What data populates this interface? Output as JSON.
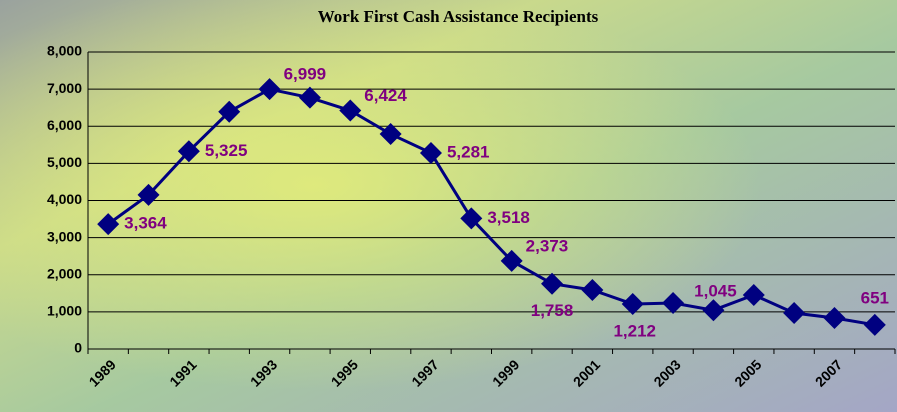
{
  "chart_data": {
    "type": "line",
    "title": "Work First Cash Assistance Recipients",
    "categories": [
      "1989",
      null,
      "1991",
      null,
      "1993",
      null,
      "1995",
      null,
      "1997",
      null,
      "1999",
      null,
      "2001",
      null,
      "2003",
      null,
      "2005",
      null,
      "2007",
      null
    ],
    "values": [
      3364,
      4150,
      5325,
      6390,
      6999,
      6770,
      6424,
      5790,
      5281,
      3518,
      2373,
      1758,
      1590,
      1212,
      1240,
      1045,
      1455,
      970,
      835,
      651
    ],
    "value_labels": [
      "3,364",
      null,
      "5,325",
      null,
      "6,999",
      null,
      "6,424",
      null,
      "5,281",
      "3,518",
      "2,373",
      "1,758",
      null,
      "1,212",
      null,
      "1,045",
      null,
      null,
      null,
      "651"
    ],
    "color": "#000080",
    "label_color": "#800080",
    "ylim": [
      0,
      8000
    ],
    "yticks": [
      0,
      {
        "value": 1000,
        "label": "1,000"
      },
      {
        "value": 2000,
        "label": "2,000"
      },
      {
        "value": 3000,
        "label": "3,000"
      },
      {
        "value": 4000,
        "label": "4,000"
      },
      {
        "value": 5000,
        "label": "5,000"
      },
      {
        "value": 6000,
        "label": "6,000"
      },
      {
        "value": 7000,
        "label": "7,000"
      },
      {
        "value": 8000,
        "label": "8,000"
      }
    ],
    "grid": true
  }
}
